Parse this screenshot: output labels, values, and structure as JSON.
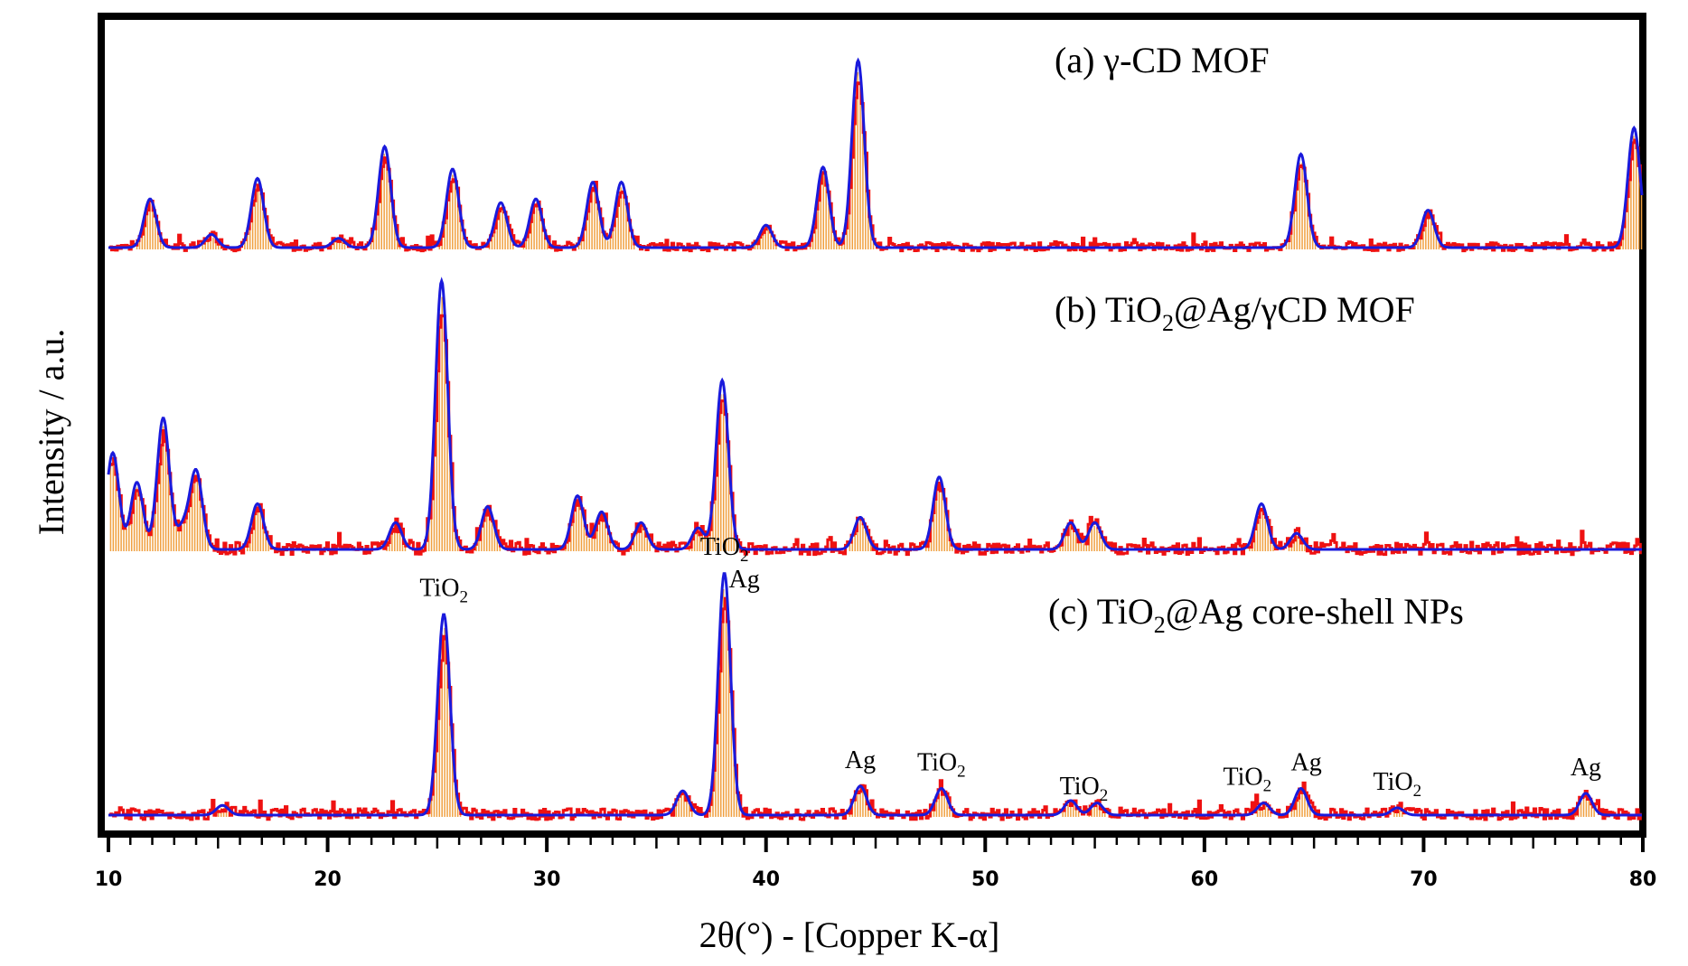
{
  "chart_data": {
    "type": "line",
    "xlabel": "2θ(°) - [Copper K-α]",
    "ylabel": "Intensity / a.u.",
    "xlim": [
      10,
      80
    ],
    "xticks": [
      "10",
      "20",
      "30",
      "40",
      "50",
      "60",
      "70",
      "80"
    ],
    "grid": false,
    "colors": {
      "fit": "#1a1adc",
      "measured": "#ee1111",
      "sticks": "#f0a040",
      "frame": "#000000"
    },
    "panels": [
      {
        "title_parts": [
          "(a) γ-CD MOF"
        ],
        "peaks": [
          {
            "x": 11.9,
            "h": 0.26
          },
          {
            "x": 14.7,
            "h": 0.07
          },
          {
            "x": 16.8,
            "h": 0.37
          },
          {
            "x": 20.5,
            "h": 0.05
          },
          {
            "x": 22.6,
            "h": 0.54
          },
          {
            "x": 25.7,
            "h": 0.42
          },
          {
            "x": 27.9,
            "h": 0.24
          },
          {
            "x": 29.5,
            "h": 0.26
          },
          {
            "x": 32.1,
            "h": 0.35
          },
          {
            "x": 33.4,
            "h": 0.35
          },
          {
            "x": 40.0,
            "h": 0.12
          },
          {
            "x": 42.6,
            "h": 0.43
          },
          {
            "x": 44.2,
            "h": 1.0
          },
          {
            "x": 64.4,
            "h": 0.5
          },
          {
            "x": 70.2,
            "h": 0.2
          },
          {
            "x": 79.6,
            "h": 0.64
          }
        ],
        "annotations": []
      },
      {
        "title_parts": [
          "(b) TiO",
          "2",
          "@Ag/γCD MOF"
        ],
        "peaks": [
          {
            "x": 10.2,
            "h": 0.36
          },
          {
            "x": 11.3,
            "h": 0.25
          },
          {
            "x": 12.5,
            "h": 0.49
          },
          {
            "x": 13.4,
            "h": 0.08
          },
          {
            "x": 14.0,
            "h": 0.29
          },
          {
            "x": 16.8,
            "h": 0.17
          },
          {
            "x": 23.1,
            "h": 0.1
          },
          {
            "x": 25.2,
            "h": 1.0
          },
          {
            "x": 27.3,
            "h": 0.16
          },
          {
            "x": 31.4,
            "h": 0.2
          },
          {
            "x": 32.5,
            "h": 0.14
          },
          {
            "x": 34.3,
            "h": 0.1
          },
          {
            "x": 36.9,
            "h": 0.08
          },
          {
            "x": 38.0,
            "h": 0.63
          },
          {
            "x": 44.3,
            "h": 0.12
          },
          {
            "x": 47.9,
            "h": 0.27
          },
          {
            "x": 53.9,
            "h": 0.1
          },
          {
            "x": 55.0,
            "h": 0.1
          },
          {
            "x": 62.6,
            "h": 0.17
          },
          {
            "x": 64.2,
            "h": 0.06
          }
        ],
        "annotations": []
      },
      {
        "title_parts": [
          "(c) TiO",
          "2",
          "@Ag core-shell NPs"
        ],
        "peaks": [
          {
            "x": 15.2,
            "h": 0.04
          },
          {
            "x": 25.3,
            "h": 0.83
          },
          {
            "x": 36.2,
            "h": 0.1
          },
          {
            "x": 38.1,
            "h": 1.0
          },
          {
            "x": 44.3,
            "h": 0.12
          },
          {
            "x": 48.0,
            "h": 0.11
          },
          {
            "x": 53.9,
            "h": 0.06
          },
          {
            "x": 55.1,
            "h": 0.05
          },
          {
            "x": 62.7,
            "h": 0.05
          },
          {
            "x": 64.4,
            "h": 0.11
          },
          {
            "x": 68.8,
            "h": 0.03
          },
          {
            "x": 77.4,
            "h": 0.09
          }
        ],
        "annotations": [
          {
            "x": 25.3,
            "text": "TiO",
            "sub": "2"
          },
          {
            "x": 38.1,
            "text": "TiO",
            "sub": "2"
          },
          {
            "x": 38.1,
            "text": "Ag",
            "sub": ""
          },
          {
            "x": 44.3,
            "text": "Ag",
            "sub": ""
          },
          {
            "x": 48.0,
            "text": "TiO",
            "sub": "2"
          },
          {
            "x": 54.5,
            "text": "TiO",
            "sub": "2"
          },
          {
            "x": 62.7,
            "text": "TiO",
            "sub": "2"
          },
          {
            "x": 64.4,
            "text": "Ag",
            "sub": ""
          },
          {
            "x": 68.8,
            "text": "TiO",
            "sub": "2"
          },
          {
            "x": 77.4,
            "text": "Ag",
            "sub": ""
          }
        ]
      }
    ]
  }
}
